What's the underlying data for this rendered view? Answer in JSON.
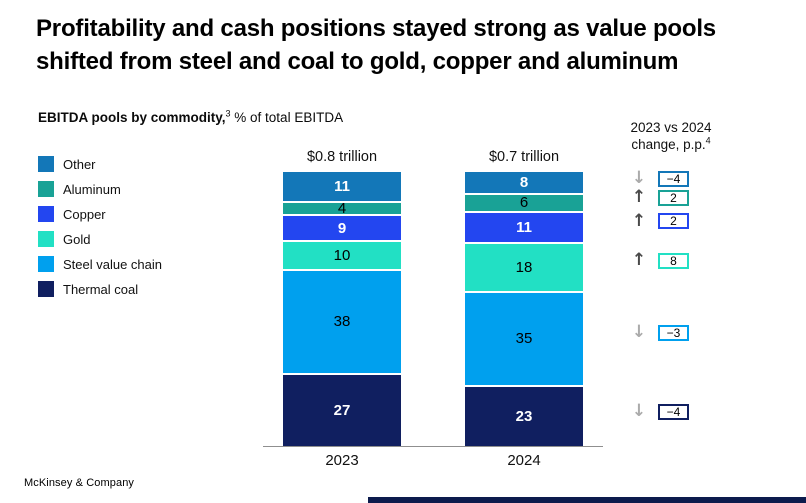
{
  "title": "Profitability and cash positions stayed strong as value pools\nshifted from steel and coal to gold, copper and aluminum",
  "subtitle": {
    "bold": "EBITDA pools by commodity,",
    "footnote_sup": "3",
    "rest": " % of total EBITDA"
  },
  "change_header": {
    "line1": "2023 vs 2024",
    "line2": "change, p.p.",
    "footnote_sup": "4"
  },
  "footer": {
    "brand": "McKinsey & Company"
  },
  "colors": {
    "axis": "#8F8F8F",
    "arrow_up": "#4A4A4A",
    "arrow_down": "#ABABAB",
    "bottom_rule": "#0C1B4D"
  },
  "chart_data": {
    "type": "bar",
    "stacked": true,
    "title": "EBITDA pools by commodity, % of total EBITDA",
    "categories": [
      "2023",
      "2024"
    ],
    "bar_totals": [
      "$0.8 trillion",
      "$0.7 trillion"
    ],
    "legend_position": "left",
    "grid": false,
    "ylim": [
      0,
      100
    ],
    "series": [
      {
        "name": "Other",
        "color": "#1377B8",
        "values": [
          11,
          8
        ],
        "change_pp": -4
      },
      {
        "name": "Aluminum",
        "color": "#19A296",
        "values": [
          4,
          6
        ],
        "change_pp": 2
      },
      {
        "name": "Copper",
        "color": "#2346F0",
        "values": [
          9,
          11
        ],
        "change_pp": 2
      },
      {
        "name": "Gold",
        "color": "#22E0C4",
        "values": [
          10,
          18
        ],
        "change_pp": 8
      },
      {
        "name": "Steel value chain",
        "color": "#00A0EE",
        "values": [
          38,
          35
        ],
        "change_pp": -3
      },
      {
        "name": "Thermal coal",
        "color": "#101F60",
        "values": [
          27,
          23
        ],
        "change_pp": -4
      }
    ]
  }
}
